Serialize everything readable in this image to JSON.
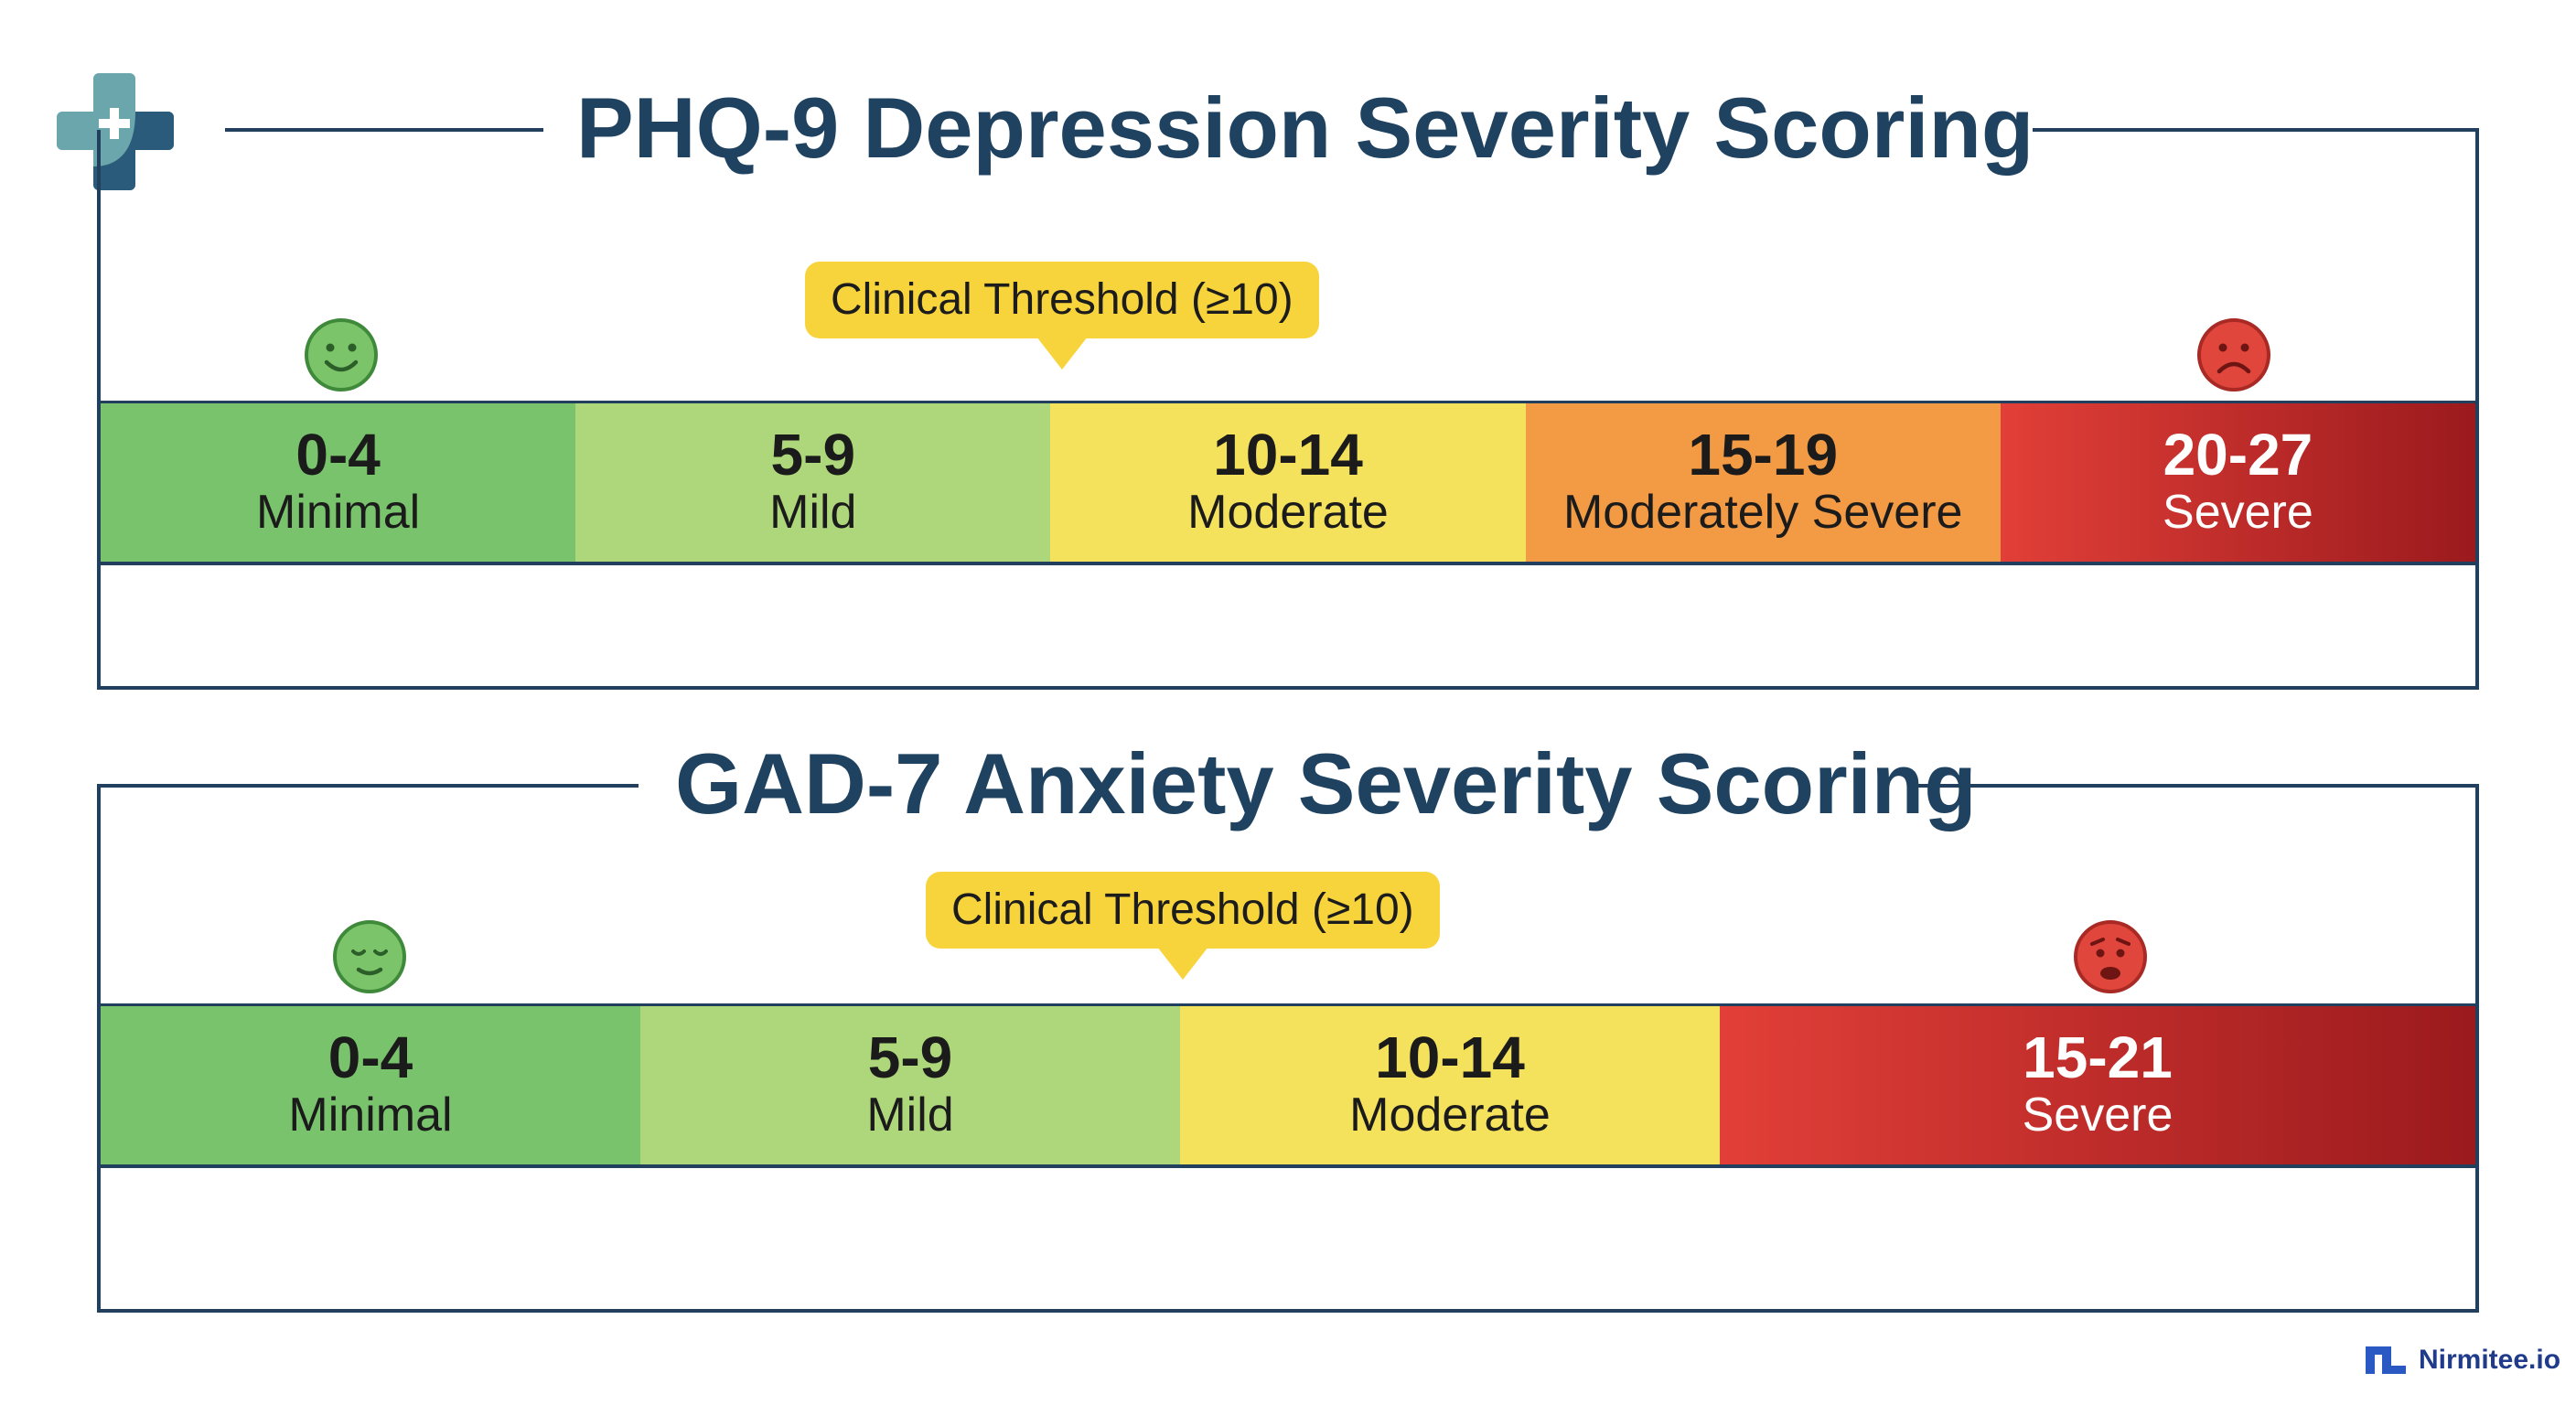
{
  "colors": {
    "frame": "#22405e",
    "title": "#1f4260",
    "badge": "#f7d43b",
    "minimal": "#79c36d",
    "mild": "#aed67a",
    "moderate": "#f4e15c",
    "moderately_severe": "#f39a44",
    "severe_start": "#e23f38",
    "severe_end": "#9b1a1d"
  },
  "phq9": {
    "title": "PHQ-9 Depression Severity Scoring",
    "threshold_label": "Clinical Threshold (≥10)",
    "segments": [
      {
        "range": "0-4",
        "label": "Minimal"
      },
      {
        "range": "5-9",
        "label": "Mild"
      },
      {
        "range": "10-14",
        "label": "Moderate"
      },
      {
        "range": "15-19",
        "label": "Moderately Severe"
      },
      {
        "range": "20-27",
        "label": "Severe"
      }
    ],
    "low_icon": "smiling-face-icon",
    "high_icon": "frowning-face-icon"
  },
  "gad7": {
    "title": "GAD-7 Anxiety Severity Scoring",
    "threshold_label": "Clinical Threshold (≥10)",
    "segments": [
      {
        "range": "0-4",
        "label": "Minimal"
      },
      {
        "range": "5-9",
        "label": "Mild"
      },
      {
        "range": "10-14",
        "label": "Moderate"
      },
      {
        "range": "15-21",
        "label": "Severe"
      }
    ],
    "low_icon": "calm-face-icon",
    "high_icon": "worried-face-icon"
  },
  "brand": {
    "name": "Nirmitee.io",
    "logo_icon": "medical-cross-logo-icon",
    "mark_icon": "nirmitee-mark-icon"
  }
}
